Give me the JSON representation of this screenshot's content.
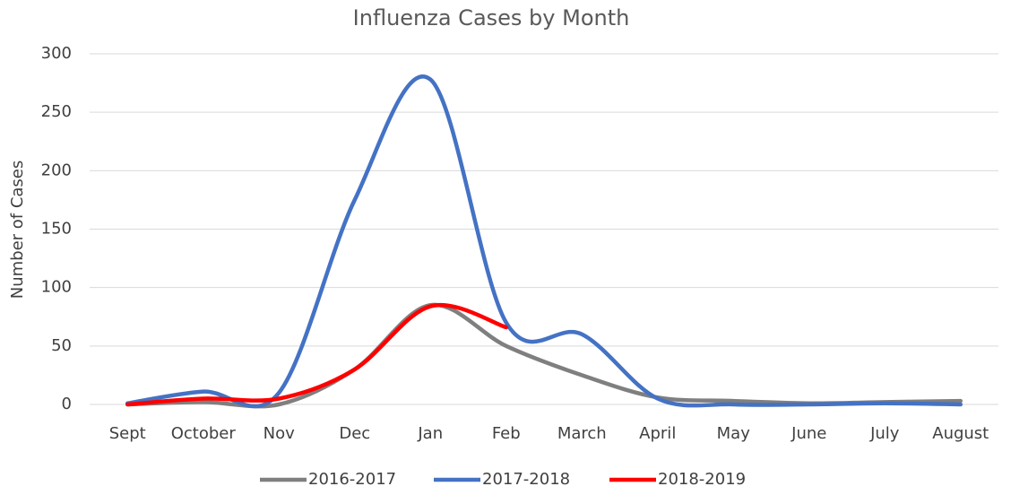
{
  "chart_data": {
    "type": "line",
    "title": "Influenza Cases by Month",
    "y_label": "Number of Cases",
    "categories": [
      "Sept",
      "October",
      "Nov",
      "Dec",
      "Jan",
      "Feb",
      "March",
      "April",
      "May",
      "June",
      "July",
      "August"
    ],
    "series": [
      {
        "name": "2016-2017",
        "color": "#7f7f7f",
        "values": [
          0,
          2,
          0,
          30,
          85,
          50,
          25,
          6,
          3,
          1,
          2,
          3
        ]
      },
      {
        "name": "2017-2018",
        "color": "#4472c4",
        "values": [
          1,
          11,
          10,
          175,
          278,
          70,
          60,
          5,
          0,
          0,
          1,
          0
        ]
      },
      {
        "name": "2018-2019",
        "color": "#ff0000",
        "values": [
          0,
          5,
          5,
          30,
          84,
          66,
          null,
          null,
          null,
          null,
          null,
          null
        ]
      }
    ],
    "ylim": [
      0,
      300
    ],
    "yticks": [
      0,
      50,
      100,
      150,
      200,
      250,
      300
    ],
    "grid": true,
    "smooth": true,
    "legend": "bottom"
  }
}
